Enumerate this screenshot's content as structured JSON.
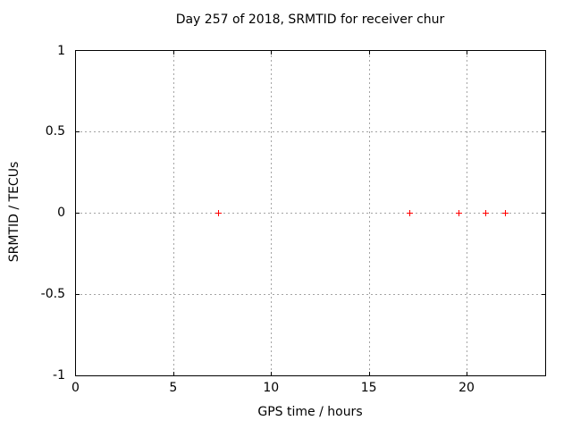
{
  "chart_data": {
    "type": "scatter",
    "title": "Day 257 of 2018, SRMTID for receiver chur",
    "xlabel": "GPS time / hours",
    "ylabel": "SRMTID / TECUs",
    "xlim": [
      0,
      24
    ],
    "ylim": [
      -1,
      1
    ],
    "xticks": [
      0,
      5,
      10,
      15,
      20
    ],
    "xtick_labels": [
      "0",
      "5",
      "10",
      "15",
      "20"
    ],
    "yticks": [
      1,
      0.5,
      0,
      -0.5,
      -1
    ],
    "ytick_labels": [
      "1",
      "0.5",
      "0",
      "-0.5",
      "-1"
    ],
    "grid": true,
    "legend": "none",
    "series": [
      {
        "name": "SRMTID",
        "marker": "plus",
        "color": "#ff0000",
        "points": [
          {
            "x": 7.3,
            "y": 0
          },
          {
            "x": 17.1,
            "y": 0
          },
          {
            "x": 19.6,
            "y": 0
          },
          {
            "x": 21.0,
            "y": 0
          },
          {
            "x": 22.0,
            "y": 0
          }
        ]
      }
    ],
    "colors": {
      "marker": "#ff0000",
      "grid": "#a4a4a4",
      "border": "#000000",
      "text": "#000000",
      "background": "#ffffff"
    }
  }
}
